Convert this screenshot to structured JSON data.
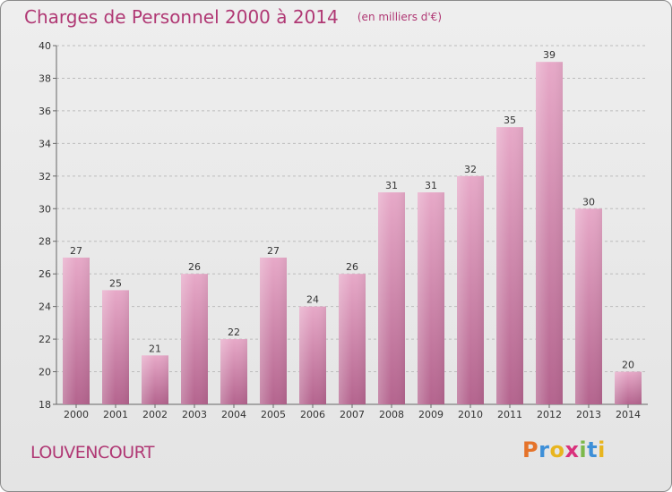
{
  "header": {
    "title": "Charges de Personnel 2000 à 2014",
    "subtitle": "(en milliers d'€)"
  },
  "footer": {
    "place": "LOUVENCOURT",
    "logo_letters": [
      "P",
      "r",
      "o",
      "x",
      "i",
      "t",
      "i"
    ],
    "logo_colors": [
      "#e5732a",
      "#3d8fd8",
      "#e8b51f",
      "#d9317c",
      "#7cb84a",
      "#3d8fd8",
      "#e8b51f"
    ]
  },
  "chart_data": {
    "type": "bar",
    "title": "Charges de Personnel 2000 à 2014",
    "subtitle": "(en milliers d'€)",
    "categories": [
      "2000",
      "2001",
      "2002",
      "2003",
      "2004",
      "2005",
      "2006",
      "2007",
      "2008",
      "2009",
      "2010",
      "2011",
      "2012",
      "2013",
      "2014"
    ],
    "values": [
      27,
      25,
      21,
      26,
      22,
      27,
      24,
      26,
      31,
      31,
      32,
      35,
      39,
      30,
      20
    ],
    "ylim": [
      18,
      40
    ],
    "yticks": [
      18,
      20,
      22,
      24,
      26,
      28,
      30,
      32,
      34,
      36,
      38,
      40
    ],
    "grid": "horizontal dashed",
    "bar_color": "#c86e9a",
    "xlabel": "",
    "ylabel": ""
  }
}
